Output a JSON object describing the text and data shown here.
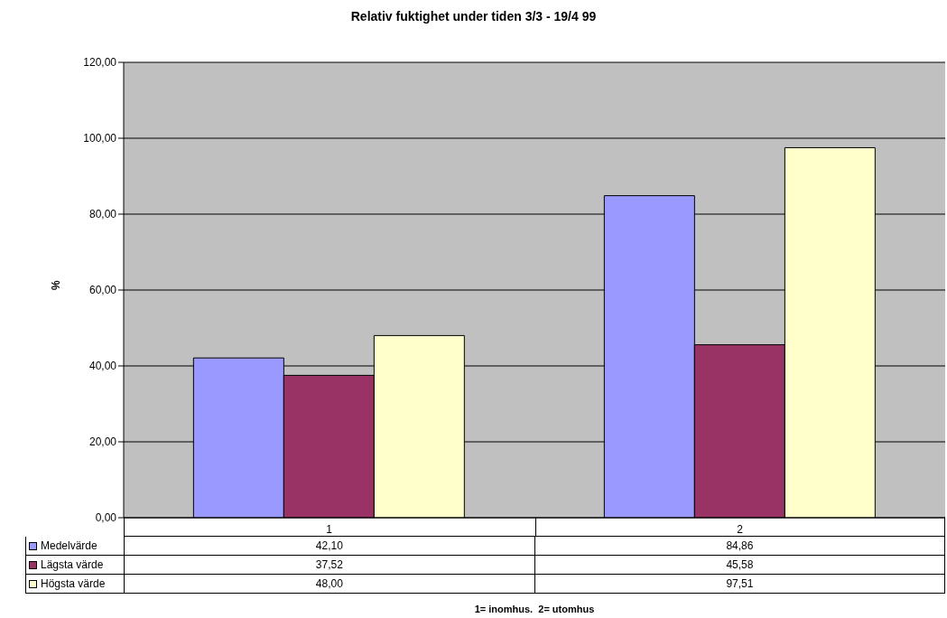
{
  "chart_data": {
    "type": "bar",
    "title": "Relativ fuktighet under tiden 3/3 - 19/4 99",
    "ylabel": "%",
    "annotations": [
      "1= inomhus.  2= utomhus"
    ],
    "categories": [
      "1",
      "2"
    ],
    "series": [
      {
        "name": "Medelvärde",
        "color": "#9999ff",
        "values": [
          42.1,
          84.86
        ],
        "value_labels": [
          "42,10",
          "84,86"
        ]
      },
      {
        "name": "Lägsta värde",
        "color": "#993366",
        "values": [
          37.52,
          45.58
        ],
        "value_labels": [
          "37,52",
          "45,58"
        ]
      },
      {
        "name": "Högsta värde",
        "color": "#ffffcc",
        "values": [
          48.0,
          97.51
        ],
        "value_labels": [
          "48,00",
          "97,51"
        ]
      }
    ],
    "ylim": [
      0,
      120
    ],
    "yticks": [
      {
        "value": 0,
        "label": "0,00"
      },
      {
        "value": 20,
        "label": "20,00"
      },
      {
        "value": 40,
        "label": "40,00"
      },
      {
        "value": 60,
        "label": "60,00"
      },
      {
        "value": 80,
        "label": "80,00"
      },
      {
        "value": 100,
        "label": "100,00"
      },
      {
        "value": 120,
        "label": "120,00"
      }
    ],
    "grid": "y",
    "legend": "bottom"
  }
}
